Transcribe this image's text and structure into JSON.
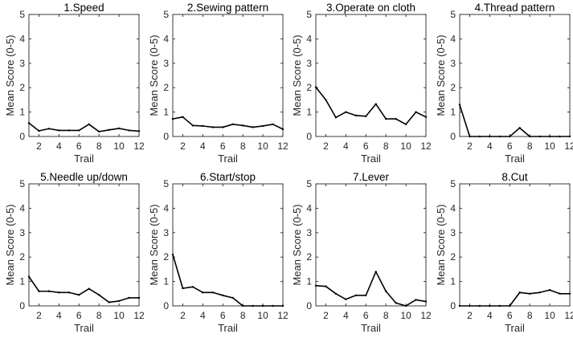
{
  "chart_data": [
    {
      "type": "line",
      "title": "1.Speed",
      "xlabel": "Trail",
      "ylabel": "Mean Score (0-5)",
      "xlim": [
        1,
        12
      ],
      "ylim": [
        0,
        5
      ],
      "xticks": [
        "2",
        "4",
        "6",
        "8",
        "10",
        "12"
      ],
      "yticks": [
        "0",
        "1",
        "2",
        "3",
        "4",
        "5"
      ],
      "x": [
        1,
        2,
        3,
        4,
        5,
        6,
        7,
        8,
        9,
        10,
        11,
        12
      ],
      "y": [
        0.55,
        0.23,
        0.32,
        0.25,
        0.25,
        0.25,
        0.5,
        0.2,
        0.27,
        0.33,
        0.25,
        0.22
      ]
    },
    {
      "type": "line",
      "title": "2.Sewing pattern",
      "xlabel": "Trail",
      "ylabel": "Mean Score (0-5)",
      "xlim": [
        1,
        12
      ],
      "ylim": [
        0,
        5
      ],
      "xticks": [
        "2",
        "4",
        "6",
        "8",
        "10",
        "12"
      ],
      "yticks": [
        "0",
        "1",
        "2",
        "3",
        "4",
        "5"
      ],
      "x": [
        1,
        2,
        3,
        4,
        5,
        6,
        7,
        8,
        9,
        10,
        11,
        12
      ],
      "y": [
        0.72,
        0.8,
        0.45,
        0.43,
        0.38,
        0.38,
        0.5,
        0.45,
        0.38,
        0.43,
        0.5,
        0.3
      ]
    },
    {
      "type": "line",
      "title": "3.Operate on cloth",
      "xlabel": "Trail",
      "ylabel": "Mean Score (0-5)",
      "xlim": [
        1,
        12
      ],
      "ylim": [
        0,
        5
      ],
      "xticks": [
        "2",
        "4",
        "6",
        "8",
        "10",
        "12"
      ],
      "yticks": [
        "0",
        "1",
        "2",
        "3",
        "4",
        "5"
      ],
      "x": [
        1,
        2,
        3,
        4,
        5,
        6,
        7,
        8,
        9,
        10,
        11,
        12
      ],
      "y": [
        2.02,
        1.5,
        0.78,
        1.0,
        0.86,
        0.83,
        1.33,
        0.72,
        0.72,
        0.5,
        1.0,
        0.8
      ]
    },
    {
      "type": "line",
      "title": "4.Thread pattern",
      "xlabel": "Trail",
      "ylabel": "Mean Score (0-5)",
      "xlim": [
        1,
        12
      ],
      "ylim": [
        0,
        5
      ],
      "xticks": [
        "2",
        "4",
        "6",
        "8",
        "10",
        "12"
      ],
      "yticks": [
        "0",
        "1",
        "2",
        "3",
        "4",
        "5"
      ],
      "x": [
        1,
        2,
        3,
        4,
        5,
        6,
        7,
        8,
        9,
        10,
        11,
        12
      ],
      "y": [
        1.3,
        0,
        0,
        0,
        0,
        0,
        0.35,
        0,
        0,
        0,
        0,
        0
      ]
    },
    {
      "type": "line",
      "title": "5.Needle up/down",
      "xlabel": "Trail",
      "ylabel": "Mean Score (0-5)",
      "xlim": [
        1,
        12
      ],
      "ylim": [
        0,
        5
      ],
      "xticks": [
        "2",
        "4",
        "6",
        "8",
        "10",
        "12"
      ],
      "yticks": [
        "0",
        "1",
        "2",
        "3",
        "4",
        "5"
      ],
      "x": [
        1,
        2,
        3,
        4,
        5,
        6,
        7,
        8,
        9,
        10,
        11,
        12
      ],
      "y": [
        1.2,
        0.6,
        0.6,
        0.55,
        0.55,
        0.45,
        0.7,
        0.45,
        0.15,
        0.2,
        0.33,
        0.33
      ]
    },
    {
      "type": "line",
      "title": "6.Start/stop",
      "xlabel": "Trail",
      "ylabel": "Mean Score (0-5)",
      "xlim": [
        1,
        12
      ],
      "ylim": [
        0,
        5
      ],
      "xticks": [
        "2",
        "4",
        "6",
        "8",
        "10",
        "12"
      ],
      "yticks": [
        "0",
        "1",
        "2",
        "3",
        "4",
        "5"
      ],
      "x": [
        1,
        2,
        3,
        4,
        5,
        6,
        7,
        8,
        9,
        10,
        11,
        12
      ],
      "y": [
        2.1,
        0.72,
        0.78,
        0.55,
        0.55,
        0.43,
        0.33,
        0,
        0,
        0,
        0,
        0
      ]
    },
    {
      "type": "line",
      "title": "7.Lever",
      "xlabel": "Trail",
      "ylabel": "Mean Score (0-5)",
      "xlim": [
        1,
        12
      ],
      "ylim": [
        0,
        5
      ],
      "xticks": [
        "2",
        "4",
        "6",
        "8",
        "10",
        "12"
      ],
      "yticks": [
        "0",
        "1",
        "2",
        "3",
        "4",
        "5"
      ],
      "x": [
        1,
        2,
        3,
        4,
        5,
        6,
        7,
        8,
        9,
        10,
        11,
        12
      ],
      "y": [
        0.83,
        0.8,
        0.5,
        0.27,
        0.43,
        0.43,
        1.4,
        0.6,
        0.12,
        0,
        0.25,
        0.18
      ]
    },
    {
      "type": "line",
      "title": "8.Cut",
      "xlabel": "Trail",
      "ylabel": "Mean Score (0-5)",
      "xlim": [
        1,
        12
      ],
      "ylim": [
        0,
        5
      ],
      "xticks": [
        "2",
        "4",
        "6",
        "8",
        "10",
        "12"
      ],
      "yticks": [
        "0",
        "1",
        "2",
        "3",
        "4",
        "5"
      ],
      "x": [
        1,
        2,
        3,
        4,
        5,
        6,
        7,
        8,
        9,
        10,
        11,
        12
      ],
      "y": [
        0,
        0,
        0,
        0,
        0,
        0,
        0.55,
        0.5,
        0.55,
        0.65,
        0.5,
        0.5
      ]
    }
  ],
  "style": {
    "line_color": "#000000",
    "axis_color": "#262626",
    "background": "#ffffff"
  }
}
